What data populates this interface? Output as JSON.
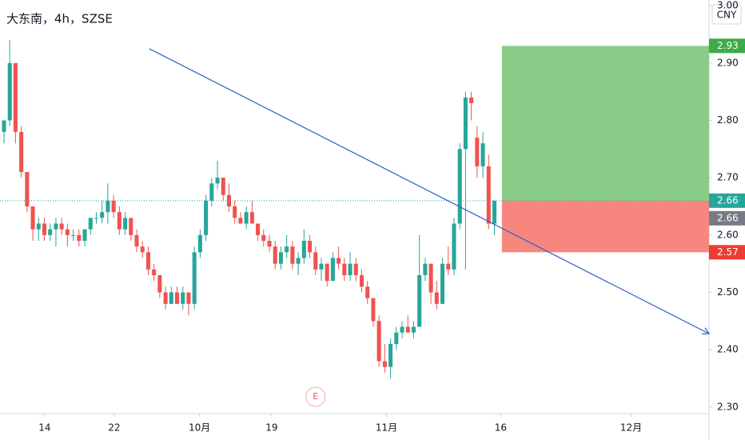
{
  "chart_data": {
    "type": "candlestick",
    "title": "大东南，4h，SZSE",
    "currency": "CNY",
    "open": [
      2.78,
      2.8,
      2.9,
      2.78,
      2.71,
      2.65,
      2.61,
      2.62,
      2.6,
      2.61,
      2.62,
      2.61,
      2.6,
      2.6,
      2.59,
      2.61,
      2.63,
      2.63,
      2.64,
      2.66,
      2.64,
      2.61,
      2.63,
      2.6,
      2.58,
      2.57,
      2.54,
      2.53,
      2.5,
      2.48,
      2.5,
      2.48,
      2.5,
      2.48,
      2.57,
      2.6,
      2.66,
      2.69,
      2.7,
      2.67,
      2.65,
      2.63,
      2.62,
      2.64,
      2.62,
      2.6,
      2.59,
      2.58,
      2.55,
      2.57,
      2.58,
      2.55,
      2.56,
      2.59,
      2.57,
      2.54,
      2.55,
      2.52,
      2.56,
      2.55,
      2.53,
      2.55,
      2.53,
      2.51,
      2.49,
      2.45,
      2.38,
      2.37,
      2.41,
      2.43,
      2.44,
      2.43,
      2.44,
      2.53,
      2.55,
      2.5,
      2.48,
      2.55,
      2.54,
      2.62,
      2.75,
      2.84,
      2.77,
      2.72,
      2.72,
      2.62
    ],
    "high": [
      2.8,
      2.94,
      2.9,
      2.79,
      2.71,
      2.65,
      2.63,
      2.63,
      2.62,
      2.63,
      2.63,
      2.62,
      2.61,
      2.61,
      2.61,
      2.63,
      2.64,
      2.66,
      2.69,
      2.67,
      2.65,
      2.64,
      2.63,
      2.61,
      2.59,
      2.58,
      2.55,
      2.53,
      2.51,
      2.51,
      2.51,
      2.51,
      2.5,
      2.58,
      2.61,
      2.67,
      2.7,
      2.73,
      2.7,
      2.69,
      2.66,
      2.64,
      2.65,
      2.66,
      2.62,
      2.61,
      2.6,
      2.59,
      2.58,
      2.6,
      2.59,
      2.57,
      2.61,
      2.6,
      2.58,
      2.56,
      2.55,
      2.57,
      2.58,
      2.56,
      2.57,
      2.56,
      2.54,
      2.52,
      2.49,
      2.46,
      2.41,
      2.42,
      2.44,
      2.45,
      2.46,
      2.45,
      2.6,
      2.56,
      2.55,
      2.52,
      2.56,
      2.58,
      2.63,
      2.76,
      2.85,
      2.85,
      2.79,
      2.78,
      2.74,
      2.66
    ],
    "low": [
      2.76,
      2.79,
      2.76,
      2.7,
      2.64,
      2.59,
      2.59,
      2.59,
      2.59,
      2.58,
      2.6,
      2.58,
      2.59,
      2.58,
      2.58,
      2.6,
      2.62,
      2.62,
      2.62,
      2.63,
      2.6,
      2.6,
      2.59,
      2.57,
      2.56,
      2.53,
      2.52,
      2.49,
      2.47,
      2.48,
      2.48,
      2.47,
      2.46,
      2.47,
      2.56,
      2.59,
      2.65,
      2.68,
      2.66,
      2.64,
      2.62,
      2.62,
      2.61,
      2.62,
      2.59,
      2.58,
      2.57,
      2.54,
      2.54,
      2.56,
      2.54,
      2.53,
      2.55,
      2.56,
      2.53,
      2.52,
      2.51,
      2.52,
      2.54,
      2.52,
      2.52,
      2.52,
      2.5,
      2.48,
      2.44,
      2.37,
      2.36,
      2.35,
      2.4,
      2.42,
      2.43,
      2.42,
      2.44,
      2.52,
      2.48,
      2.47,
      2.48,
      2.53,
      2.53,
      2.61,
      2.54,
      2.8,
      2.7,
      2.7,
      2.61,
      2.6
    ],
    "close": [
      2.8,
      2.9,
      2.78,
      2.71,
      2.65,
      2.61,
      2.62,
      2.6,
      2.61,
      2.62,
      2.61,
      2.6,
      2.6,
      2.59,
      2.61,
      2.63,
      2.63,
      2.64,
      2.66,
      2.64,
      2.61,
      2.63,
      2.6,
      2.58,
      2.57,
      2.54,
      2.53,
      2.5,
      2.48,
      2.5,
      2.48,
      2.5,
      2.48,
      2.57,
      2.6,
      2.66,
      2.69,
      2.7,
      2.67,
      2.65,
      2.63,
      2.62,
      2.64,
      2.62,
      2.6,
      2.59,
      2.58,
      2.55,
      2.57,
      2.58,
      2.55,
      2.56,
      2.59,
      2.57,
      2.54,
      2.55,
      2.52,
      2.56,
      2.55,
      2.53,
      2.55,
      2.53,
      2.51,
      2.49,
      2.45,
      2.38,
      2.37,
      2.41,
      2.43,
      2.44,
      2.43,
      2.44,
      2.53,
      2.55,
      2.5,
      2.48,
      2.55,
      2.54,
      2.62,
      2.75,
      2.84,
      2.83,
      2.72,
      2.76,
      2.62,
      2.66
    ],
    "up_color": "#26a69a",
    "down_color": "#ef5350",
    "xlim": [
      -0.69,
      122.2
    ],
    "xticks": [
      {
        "value": 7.06,
        "label": "14"
      },
      {
        "value": 19.1,
        "label": "22"
      },
      {
        "value": 33.9,
        "label": "10月"
      },
      {
        "value": 46.4,
        "label": "19"
      },
      {
        "value": 66.3,
        "label": "11月"
      },
      {
        "value": 86.1,
        "label": "16"
      },
      {
        "value": 108.7,
        "label": "12月"
      }
    ],
    "ylim": [
      2.29,
      3.01
    ],
    "yticks": [
      {
        "value": 2.3,
        "label": "2.30"
      },
      {
        "value": 2.4,
        "label": "2.40"
      },
      {
        "value": 2.5,
        "label": "2.50"
      },
      {
        "value": 2.6,
        "label": "2.60"
      },
      {
        "value": 2.7,
        "label": "2.70"
      },
      {
        "value": 2.8,
        "label": "2.80"
      },
      {
        "value": 2.9,
        "label": "2.90"
      },
      {
        "value": 3.0,
        "label": "3.00"
      }
    ],
    "last_price": 2.66,
    "position": {
      "start_x": 86.3,
      "entry": 2.66,
      "target": 2.93,
      "stop": 2.57,
      "profit_color": "#89cc89",
      "loss_color": "#f7877e"
    },
    "trendline": {
      "x": [
        25.2,
        122.2
      ],
      "y": [
        2.925,
        2.428
      ],
      "color": "#2a62c4"
    },
    "event": {
      "x": 54.0,
      "label": "E"
    }
  }
}
